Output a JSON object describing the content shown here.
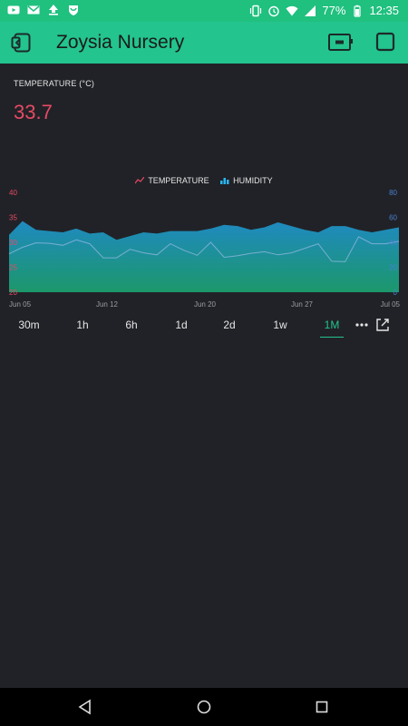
{
  "status_bar": {
    "left_icons": [
      "youtube-icon",
      "gmail-icon",
      "upload-icon",
      "shield-icon"
    ],
    "right_icons": [
      "vibrate-icon",
      "alarm-icon",
      "wifi-icon",
      "signal-icon",
      "battery-icon"
    ],
    "battery": "77%",
    "time": "12:35"
  },
  "app_bar": {
    "title": "Zoysia Nursery",
    "back_icon": "back-icon",
    "device_icon": "device-icon",
    "stop_icon": "stop-icon",
    "background": "#23c48e"
  },
  "temperature_widget": {
    "label": "TEMPERATURE (°C)",
    "value": "33.7",
    "color": "#e64a64"
  },
  "chart_data": {
    "type": "area",
    "legend": [
      {
        "label": "TEMPERATURE",
        "color": "#e64a64"
      },
      {
        "label": "HUMIDITY",
        "color": "#29b6f6"
      }
    ],
    "legend_placement": "top-center",
    "x_tick_labels": [
      "Jun 05",
      "Jun 12",
      "Jun 20",
      "Jun 27",
      "Jul 05"
    ],
    "left_axis": {
      "ticks": [
        "40",
        "35",
        "30",
        "25",
        "20"
      ],
      "ylim": [
        20,
        40
      ],
      "color": "#e64a64"
    },
    "right_axis": {
      "ticks": [
        "80",
        "60",
        "40",
        "20",
        "0"
      ],
      "ylim": [
        0,
        80
      ],
      "color": "#4a7fd1"
    },
    "grid": false,
    "series": [
      {
        "name": "TEMPERATURE",
        "axis": "left",
        "values": [
          27.7,
          29.0,
          29.9,
          29.8,
          29.4,
          30.5,
          29.7,
          26.9,
          26.9,
          28.6,
          27.9,
          27.5,
          29.7,
          28.4,
          27.4,
          30.0,
          27.0,
          27.3,
          27.8,
          28.1,
          27.5,
          27.9,
          28.8,
          29.7,
          26.2,
          26.1,
          31.1,
          29.7,
          29.7,
          30.2
        ]
      },
      {
        "name": "HUMIDITY",
        "axis": "right",
        "values": [
          46,
          57,
          50,
          49,
          48,
          51,
          47,
          48,
          42,
          45,
          48,
          47,
          49,
          49,
          49,
          51,
          54,
          53,
          50,
          52,
          56,
          53,
          50,
          48,
          53,
          53,
          50,
          48,
          50,
          52
        ]
      }
    ]
  },
  "time_ranges": {
    "options": [
      "30m",
      "1h",
      "6h",
      "1d",
      "2d",
      "1w",
      "1M"
    ],
    "selected": "1M",
    "more_icon": "more-icon",
    "expand_icon": "expand-icon",
    "accent": "#23c48e"
  },
  "nav_bar": {
    "icons": [
      "back-triangle-icon",
      "home-circle-icon",
      "recents-square-icon"
    ]
  }
}
